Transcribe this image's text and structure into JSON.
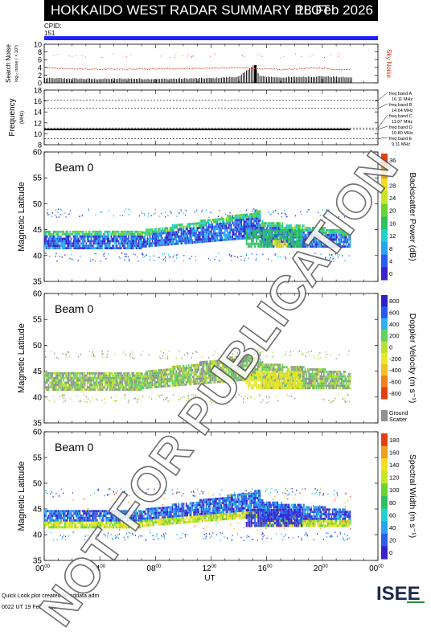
{
  "header": {
    "title": "HOKKAIDO WEST RADAR SUMMARY PLOT",
    "date": "18 Feb 2026",
    "cpid_label": "CPID:",
    "cpid_value": "151"
  },
  "chart_data": [
    {
      "type": "line",
      "panel": "search_noise",
      "ylabel": "Search Noise",
      "ylabel2": "log₁₀ noise ( × 10³)",
      "right_label": "Sky Noise",
      "ylim": [
        0,
        10
      ],
      "yticks": [
        0,
        2,
        4,
        6,
        8,
        10
      ],
      "series": [
        {
          "name": "Search Noise",
          "color": "#000000",
          "x": [
            0,
            2,
            4,
            6,
            8,
            10,
            12,
            14,
            15,
            15.5,
            16,
            17,
            18,
            19,
            20,
            21,
            22
          ],
          "y": [
            1.2,
            1.1,
            1.0,
            1.1,
            1.0,
            1.1,
            1.2,
            1.6,
            4.5,
            1.7,
            1.6,
            1.4,
            1.5,
            1.6,
            1.7,
            1.5,
            1.4
          ]
        },
        {
          "name": "Sky Noise",
          "color": "#d03010",
          "x": [
            0,
            2,
            4,
            6,
            8,
            10,
            12,
            14,
            16,
            17,
            18,
            19,
            20,
            21,
            22
          ],
          "y": [
            4.0,
            3.6,
            3.5,
            3.5,
            3.6,
            3.7,
            3.8,
            3.9,
            3.6,
            3.4,
            3.6,
            3.8,
            3.8,
            3.4,
            3.6
          ]
        }
      ]
    },
    {
      "type": "line",
      "panel": "frequency",
      "ylabel": "Frequency",
      "ylabel2": "(MHz)",
      "ylim": [
        8,
        18
      ],
      "yticks": [
        8,
        10,
        12,
        14,
        16,
        18
      ],
      "bands": [
        {
          "label": "freq band A",
          "value": "16.11 MHz",
          "freq": 16.11
        },
        {
          "label": "freq band B",
          "value": "14.64 MHz",
          "freq": 14.64
        },
        {
          "label": "freq band C",
          "value": "11.07 MHz",
          "freq": 11.07
        },
        {
          "label": "freq band D",
          "value": "10.80 MHz",
          "freq": 10.8
        },
        {
          "label": "freq band E",
          "value": "9.11 MHz",
          "freq": 9.11
        }
      ],
      "series": [
        {
          "name": "operating frequency",
          "x": [
            0,
            22
          ],
          "y": [
            10.8,
            10.8
          ]
        }
      ]
    },
    {
      "type": "heatmap",
      "panel": "power",
      "beam": "Beam  0",
      "ylabel": "Magnetic Latitude",
      "ylim": [
        35,
        60
      ],
      "yticks": [
        35,
        40,
        45,
        50,
        55,
        60
      ],
      "colorbar_label": "Backscatter Power (dB)",
      "colorbar_ticks": [
        "0",
        "4",
        "8",
        "12",
        "16",
        "20",
        "24",
        "28",
        "32",
        "36"
      ],
      "regions": [
        {
          "x0": 0,
          "x1": 22,
          "y0": 41,
          "y1": 45,
          "value": 4
        },
        {
          "x0": 8,
          "x1": 15,
          "y0": 44,
          "y1": 48,
          "value": 6
        },
        {
          "x0": 14.5,
          "x1": 18,
          "y0": 41,
          "y1": 44,
          "value": 14
        },
        {
          "x0": 16.5,
          "x1": 17.5,
          "y0": 41,
          "y1": 43,
          "value": 22
        }
      ]
    },
    {
      "type": "heatmap",
      "panel": "velocity",
      "beam": "Beam  0",
      "ylabel": "Magnetic Latitude",
      "ylim": [
        35,
        60
      ],
      "yticks": [
        35,
        40,
        45,
        50,
        55,
        60
      ],
      "colorbar_label": "Doppler Velocity (m s⁻¹)",
      "colorbar_ticks": [
        "800",
        "600",
        "400",
        "200",
        "0",
        "-200",
        "-400",
        "-600",
        "-800"
      ],
      "extra_legend": [
        "Ground",
        "Scatter"
      ],
      "regions": [
        {
          "x0": 0,
          "x1": 22,
          "y0": 41,
          "y1": 45,
          "value": 0
        },
        {
          "x0": 14.5,
          "x1": 19,
          "y0": 41,
          "y1": 45,
          "value": -150
        }
      ]
    },
    {
      "type": "heatmap",
      "panel": "width",
      "beam": "Beam  0",
      "ylabel": "Magnetic Latitude",
      "ylim": [
        35,
        60
      ],
      "yticks": [
        35,
        40,
        45,
        50,
        55,
        60
      ],
      "colorbar_label": "Spectral Width (m s⁻¹)",
      "colorbar_ticks": [
        "0",
        "20",
        "40",
        "60",
        "80",
        "100",
        "120",
        "140",
        "160",
        "180"
      ],
      "xlabel": "UT",
      "xlim": [
        0,
        24
      ],
      "xticks": [
        "00",
        "04",
        "08",
        "12",
        "16",
        "20",
        "00"
      ],
      "regions": [
        {
          "x0": 0,
          "x1": 22,
          "y0": 41,
          "y1": 45,
          "value": 30
        },
        {
          "x0": 8,
          "x1": 15,
          "y0": 44,
          "y1": 48,
          "value": 60
        }
      ]
    }
  ],
  "footer": {
    "credit": "Quick Look plot created by sddata.adm",
    "time": "0022 UT 19 Feb 2026",
    "logo": "ISEE"
  },
  "watermark": "NOT FOR PUBLICATION"
}
